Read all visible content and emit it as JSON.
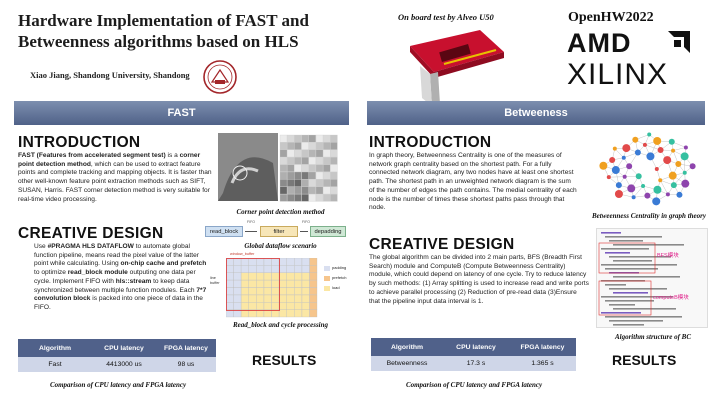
{
  "header": {
    "title": "Hardware Implementation of FAST and Betweenness algorithms based on HLS",
    "authors": "Xiao Jiang, Shandong University, Shandong",
    "board_caption": "On board test by Alveo U50",
    "event": "OpenHW2022",
    "brand_amd": "AMD",
    "brand_xilinx": "XILINX"
  },
  "left": {
    "banner": "FAST",
    "intro": {
      "heading": "INTRODUCTION",
      "p1": "FAST (Features from accelerated segment test)",
      "p2": " is a ",
      "p3": "corner point detection method",
      "p4": ", which can be used to extract feature points and complete tracking and mapping objects. It is faster than other well-known feature point extraction methods such as SIFT, SUSAN, Harris. FAST corner detection method is very suitable for real-time video processing."
    },
    "corner_caption": "Corner point detection method",
    "dataflow": {
      "caption": "Global dataflow scenario",
      "boxes": [
        "read_block",
        "filter",
        "depadding"
      ],
      "arrow_labels": [
        "FIFO",
        "FIFO"
      ]
    },
    "creative": {
      "heading": "CREATIVE DESIGN",
      "t1": "Use ",
      "t2": "#PRAGMA HLS DATAFLOW",
      "t3": " to automate global function pipeline, means read the pixel value of the latter point while calculating. Using ",
      "t4": "on-chip cache and prefetch",
      "t5": " to optimize ",
      "t6": "read_block module",
      "t7": " outputing one data per cycle. Implement FIFO with ",
      "t8": "hls::stream",
      "t9": " to keep data synchronized between multiple function modules. Each ",
      "t10": "7*7 convolution block",
      "t11": " is packed into one piece of data in the FIFO."
    },
    "readblock": {
      "caption": "Read_block and cycle processing",
      "window_label": "window_buffer",
      "line_label": "line buffer",
      "legend": [
        "padding",
        "prefetch",
        "load"
      ]
    },
    "table": {
      "headers": [
        "Algorithm",
        "CPU latency",
        "FPGA latency"
      ],
      "row": [
        "Fast",
        "4413000 us",
        "98 us"
      ]
    },
    "results": "RESULTS",
    "table_caption": "Comparison of CPU latency and FPGA latency"
  },
  "right": {
    "banner": "Betweeness",
    "intro": {
      "heading": "INTRODUCTION",
      "text": "In graph theory, Betweenness Centrality is one of the measures of network graph centrality based on the shortest path. For a fully connected network diagram, any two nodes have at least one shortest path. The shortest path in an unweighted network diagram is the sum of the number of edges the path contains. The medial centrality of each node is the number of times these shortest paths pass through that node."
    },
    "graph_caption": "Betweenness Centrality in graph theory",
    "creative": {
      "heading": "CREATIVE DESIGN",
      "text": "The global algorithm can be divided into 2 main parts, BFS (Breadth First Search) module and ComputeB (Compute Betweenness Centrality) module, which could depend on latency of one cycle. Try to reduce latency by such methods:  (1) Array splitting is used to increase read and write ports to achieve parallel processing (2) Reduction of pre-read data (3)Ensure that the pipeline input data interval is 1."
    },
    "code_labels": [
      "BFS模块",
      "computeB模块"
    ],
    "structure_caption": "Algorithm structure of BC",
    "table": {
      "headers": [
        "Algorithm",
        "CPU latency",
        "FPGA latency"
      ],
      "row": [
        "Betweenness",
        "17.3 s",
        "1.365 s"
      ]
    },
    "results": "RESULTS",
    "table_caption": "Comparison of CPU latency and FPGA latency"
  },
  "colors": {
    "banner": "#50618a",
    "table_header": "#50618a",
    "table_row": "#cfd6e8",
    "card_red": "#c8102e",
    "graph_node": "#35c0a0"
  },
  "icons": [
    "university-seal-icon",
    "fpga-card-icon",
    "amd-arrow-icon",
    "corner-image",
    "network-graph-image",
    "code-listing-image"
  ]
}
